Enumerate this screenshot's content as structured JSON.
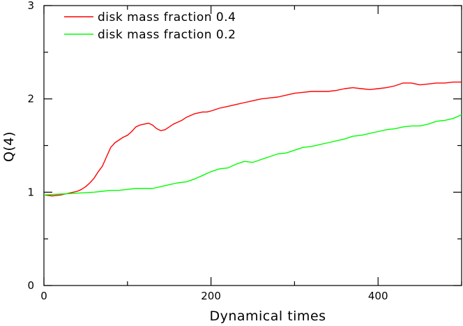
{
  "chart_data": {
    "type": "line",
    "title": "",
    "xlabel": "Dynamical times",
    "ylabel": "Q(4)",
    "xlim": [
      0,
      500
    ],
    "ylim": [
      0,
      3
    ],
    "x_ticks": [
      0,
      200,
      400
    ],
    "y_ticks": [
      0,
      1,
      2,
      3
    ],
    "grid": false,
    "legend_position": "top-left",
    "series": [
      {
        "name": "disk mass fraction 0.4",
        "color": "#ff0000",
        "points": [
          [
            0,
            0.97
          ],
          [
            10,
            0.96
          ],
          [
            20,
            0.97
          ],
          [
            30,
            0.99
          ],
          [
            40,
            1.01
          ],
          [
            45,
            1.03
          ],
          [
            50,
            1.06
          ],
          [
            55,
            1.1
          ],
          [
            60,
            1.15
          ],
          [
            65,
            1.22
          ],
          [
            70,
            1.28
          ],
          [
            75,
            1.38
          ],
          [
            80,
            1.48
          ],
          [
            85,
            1.53
          ],
          [
            90,
            1.56
          ],
          [
            95,
            1.59
          ],
          [
            100,
            1.61
          ],
          [
            105,
            1.65
          ],
          [
            110,
            1.7
          ],
          [
            115,
            1.72
          ],
          [
            120,
            1.73
          ],
          [
            125,
            1.74
          ],
          [
            130,
            1.72
          ],
          [
            135,
            1.68
          ],
          [
            140,
            1.66
          ],
          [
            145,
            1.67
          ],
          [
            150,
            1.7
          ],
          [
            155,
            1.73
          ],
          [
            160,
            1.75
          ],
          [
            165,
            1.77
          ],
          [
            170,
            1.8
          ],
          [
            175,
            1.82
          ],
          [
            180,
            1.84
          ],
          [
            185,
            1.85
          ],
          [
            190,
            1.86
          ],
          [
            195,
            1.86
          ],
          [
            200,
            1.87
          ],
          [
            210,
            1.9
          ],
          [
            220,
            1.92
          ],
          [
            230,
            1.94
          ],
          [
            240,
            1.96
          ],
          [
            250,
            1.98
          ],
          [
            260,
            2.0
          ],
          [
            270,
            2.01
          ],
          [
            280,
            2.02
          ],
          [
            290,
            2.04
          ],
          [
            300,
            2.06
          ],
          [
            310,
            2.07
          ],
          [
            320,
            2.08
          ],
          [
            330,
            2.08
          ],
          [
            340,
            2.08
          ],
          [
            350,
            2.09
          ],
          [
            360,
            2.11
          ],
          [
            370,
            2.12
          ],
          [
            380,
            2.11
          ],
          [
            390,
            2.1
          ],
          [
            400,
            2.11
          ],
          [
            410,
            2.12
          ],
          [
            420,
            2.14
          ],
          [
            430,
            2.17
          ],
          [
            440,
            2.17
          ],
          [
            450,
            2.15
          ],
          [
            460,
            2.16
          ],
          [
            470,
            2.17
          ],
          [
            480,
            2.17
          ],
          [
            490,
            2.18
          ],
          [
            500,
            2.18
          ]
        ]
      },
      {
        "name": "disk mass fraction 0.2",
        "color": "#00ff00",
        "points": [
          [
            0,
            0.97
          ],
          [
            20,
            0.98
          ],
          [
            40,
            0.99
          ],
          [
            60,
            1.0
          ],
          [
            70,
            1.01
          ],
          [
            80,
            1.02
          ],
          [
            90,
            1.02
          ],
          [
            100,
            1.03
          ],
          [
            110,
            1.04
          ],
          [
            120,
            1.04
          ],
          [
            130,
            1.04
          ],
          [
            140,
            1.06
          ],
          [
            150,
            1.08
          ],
          [
            160,
            1.1
          ],
          [
            170,
            1.11
          ],
          [
            180,
            1.14
          ],
          [
            190,
            1.18
          ],
          [
            200,
            1.22
          ],
          [
            210,
            1.25
          ],
          [
            220,
            1.26
          ],
          [
            230,
            1.3
          ],
          [
            240,
            1.33
          ],
          [
            250,
            1.32
          ],
          [
            260,
            1.35
          ],
          [
            270,
            1.38
          ],
          [
            280,
            1.41
          ],
          [
            290,
            1.42
          ],
          [
            300,
            1.45
          ],
          [
            310,
            1.48
          ],
          [
            320,
            1.49
          ],
          [
            330,
            1.51
          ],
          [
            340,
            1.53
          ],
          [
            350,
            1.55
          ],
          [
            360,
            1.57
          ],
          [
            370,
            1.6
          ],
          [
            380,
            1.61
          ],
          [
            390,
            1.63
          ],
          [
            400,
            1.65
          ],
          [
            410,
            1.67
          ],
          [
            420,
            1.68
          ],
          [
            430,
            1.7
          ],
          [
            440,
            1.71
          ],
          [
            450,
            1.71
          ],
          [
            460,
            1.73
          ],
          [
            470,
            1.76
          ],
          [
            480,
            1.77
          ],
          [
            490,
            1.79
          ],
          [
            500,
            1.83
          ]
        ]
      }
    ]
  }
}
